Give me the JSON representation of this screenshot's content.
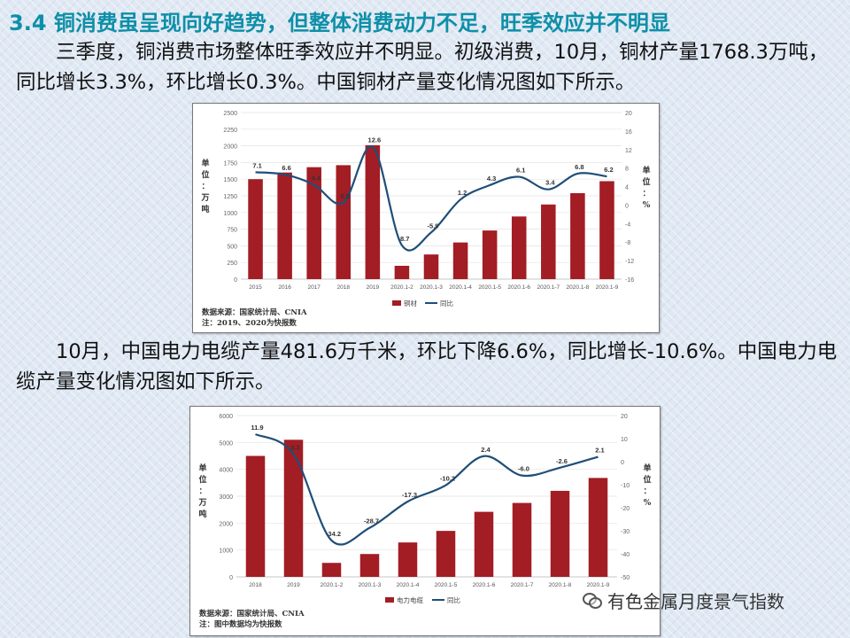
{
  "heading": "3.4 铜消费虽呈现向好趋势，但整体消费动力不足，旺季效应并不明显",
  "paragraph1": "　　三季度，铜消费市场整体旺季效应并不明显。初级消费，10月，铜材产量1768.3万吨，同比增长3.3%，环比增长0.3%。中国铜材产量变化情况图如下所示。",
  "paragraph2": "　　10月，中国电力电缆产量481.6万千米，环比下降6.6%，同比增长-10.6%。中国电力电缆产量变化情况图如下所示。",
  "chart1": {
    "left_unit": "单位：万吨",
    "right_unit": "单位：%",
    "source": "数据来源：国家统计局、CNIA\n注：2019、2020为快报数"
  },
  "chart2": {
    "left_unit": "单位：万吨",
    "right_unit": "单位：%",
    "source": "数据来源：国家统计局、CNIA\n注：图中数据均为快报数"
  },
  "watermark": "有色金属月度景气指数",
  "colors": {
    "bar": "#a31d24",
    "line": "#1f4e79",
    "heading": "#0e8fa8"
  },
  "chart_data": [
    {
      "type": "bar",
      "categories": [
        "2015",
        "2016",
        "2017",
        "2018",
        "2019",
        "2020.1-2",
        "2020.1-3",
        "2020.1-4",
        "2020.1-5",
        "2020.1-6",
        "2020.1-7",
        "2020.1-8",
        "2020.1-9"
      ],
      "series": [
        {
          "name": "铜材",
          "type": "bar",
          "axis": "left",
          "values": [
            1500,
            1600,
            1680,
            1710,
            2010,
            200,
            370,
            550,
            730,
            940,
            1120,
            1290,
            1470
          ]
        },
        {
          "name": "同比",
          "type": "line",
          "axis": "right",
          "values": [
            7.1,
            6.6,
            4.4,
            0.5,
            12.6,
            -8.7,
            -5.9,
            1.2,
            4.3,
            6.1,
            3.4,
            6.8,
            6.2
          ]
        }
      ],
      "ylim": [
        0,
        2500
      ],
      "yticks": [
        0,
        250,
        500,
        750,
        1000,
        1250,
        1500,
        1750,
        2000,
        2250,
        2500
      ],
      "y2lim": [
        -16,
        20
      ],
      "y2ticks": [
        -16,
        -12,
        -8,
        -4,
        0,
        4,
        8,
        12,
        16,
        20
      ],
      "legend_position": "bottom"
    },
    {
      "type": "bar",
      "categories": [
        "2018",
        "2019",
        "2020.1-2",
        "2020.1-3",
        "2020.1-4",
        "2020.1-5",
        "2020.1-6",
        "2020.1-7",
        "2020.1-8",
        "2020.1-9"
      ],
      "series": [
        {
          "name": "电力电缆",
          "type": "bar",
          "axis": "left",
          "values": [
            4500,
            5100,
            520,
            850,
            1280,
            1710,
            2420,
            2750,
            3200,
            3680
          ]
        },
        {
          "name": "同比",
          "type": "line",
          "axis": "right",
          "values": [
            11.9,
            3.3,
            -34.2,
            -28.7,
            -17.3,
            -10.2,
            2.4,
            -6.0,
            -2.6,
            2.1
          ]
        }
      ],
      "ylim": [
        0,
        6000
      ],
      "yticks": [
        0,
        1000,
        2000,
        3000,
        4000,
        5000,
        6000
      ],
      "y2lim": [
        -50,
        20
      ],
      "y2ticks": [
        -50,
        -40,
        -30,
        -20,
        -10,
        0,
        10,
        20
      ],
      "legend_position": "bottom"
    }
  ]
}
